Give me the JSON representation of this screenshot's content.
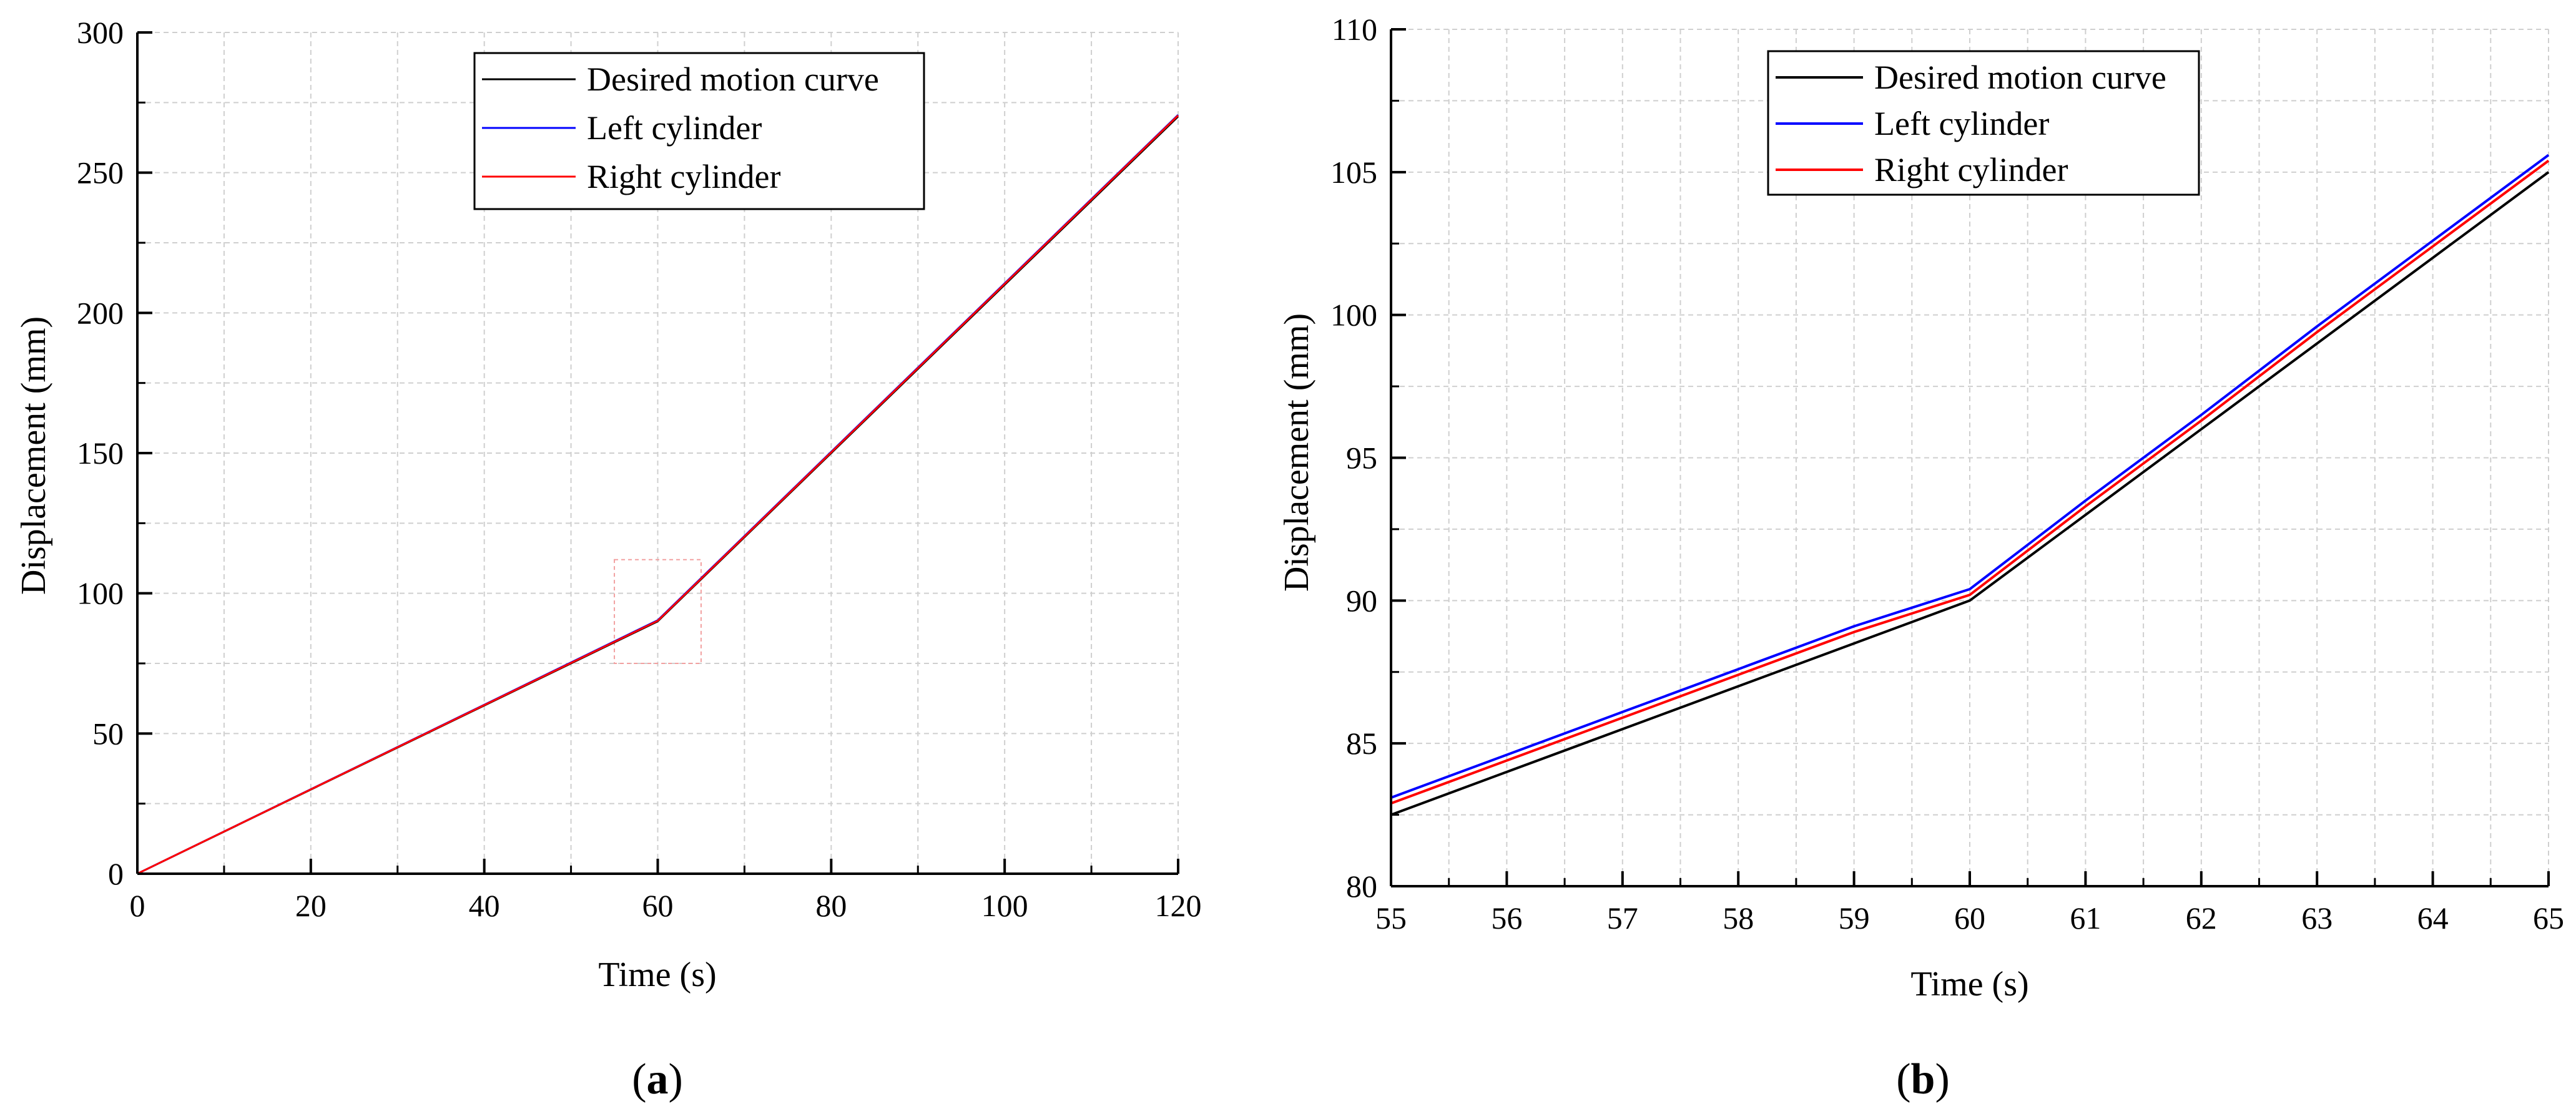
{
  "chart_data": [
    {
      "type": "line",
      "panel_label": "a",
      "xlabel": "Time (s)",
      "ylabel": "Displacement (mm)",
      "xlim": [
        0,
        120
      ],
      "ylim": [
        0,
        300
      ],
      "xticks": [
        0,
        20,
        40,
        60,
        80,
        100,
        120
      ],
      "yticks": [
        0,
        50,
        100,
        150,
        200,
        250,
        300
      ],
      "grid": true,
      "legend_position": "top-right",
      "zoom_box": {
        "x": [
          55,
          65
        ],
        "y": [
          75,
          112
        ]
      },
      "series": [
        {
          "name": "Desired motion curve",
          "color": "#000000",
          "x": [
            0,
            60,
            120
          ],
          "y": [
            0,
            90,
            270
          ]
        },
        {
          "name": "Left cylinder",
          "color": "#0000ff",
          "x": [
            0,
            60,
            120
          ],
          "y": [
            0,
            90.4,
            270.6
          ]
        },
        {
          "name": "Right cylinder",
          "color": "#ff0000",
          "x": [
            0,
            60,
            120
          ],
          "y": [
            0,
            90.2,
            270.4
          ]
        }
      ]
    },
    {
      "type": "line",
      "panel_label": "b",
      "xlabel": "Time (s)",
      "ylabel": "Displacement (mm)",
      "xlim": [
        55,
        65
      ],
      "ylim": [
        80,
        110
      ],
      "xticks": [
        55,
        56,
        57,
        58,
        59,
        60,
        61,
        62,
        63,
        64,
        65
      ],
      "yticks": [
        80,
        85,
        90,
        95,
        100,
        105,
        110
      ],
      "grid": true,
      "legend_position": "top-center",
      "series": [
        {
          "name": "Desired motion curve",
          "color": "#000000",
          "x": [
            55,
            56,
            57,
            58,
            59,
            60,
            61,
            62,
            63,
            64,
            65
          ],
          "y": [
            82.5,
            84.0,
            85.5,
            87.0,
            88.5,
            90.0,
            93.0,
            96.0,
            99.0,
            102.0,
            105.0
          ]
        },
        {
          "name": "Left cylinder",
          "color": "#0000ff",
          "x": [
            55,
            56,
            57,
            58,
            59,
            60,
            61,
            62,
            63,
            64,
            65
          ],
          "y": [
            83.1,
            84.6,
            86.1,
            87.6,
            89.1,
            90.4,
            93.5,
            96.5,
            99.6,
            102.6,
            105.6
          ]
        },
        {
          "name": "Right cylinder",
          "color": "#ff0000",
          "x": [
            55,
            56,
            57,
            58,
            59,
            60,
            61,
            62,
            63,
            64,
            65
          ],
          "y": [
            82.9,
            84.4,
            85.9,
            87.4,
            88.9,
            90.2,
            93.3,
            96.3,
            99.4,
            102.4,
            105.4
          ]
        }
      ]
    }
  ]
}
